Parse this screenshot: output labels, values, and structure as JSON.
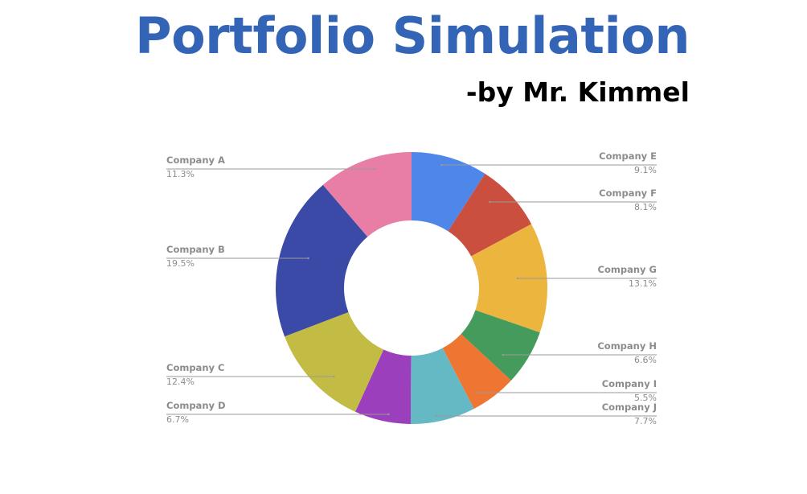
{
  "header": {
    "title": "Portfolio Simulation",
    "subtitle": "-by Mr. Kimmel"
  },
  "chart_data": {
    "type": "pie",
    "style": "donut",
    "categories": [
      "Company E",
      "Company F",
      "Company G",
      "Company H",
      "Company I",
      "Company J",
      "Company D",
      "Company C",
      "Company B",
      "Company A"
    ],
    "values": [
      9.1,
      8.1,
      13.1,
      6.6,
      5.5,
      7.7,
      6.7,
      12.4,
      19.5,
      11.3
    ],
    "labels": [
      "9.1%",
      "8.1%",
      "13.1%",
      "6.6%",
      "5.5%",
      "7.7%",
      "6.7%",
      "12.4%",
      "19.5%",
      "11.3%"
    ],
    "colors": [
      "#4f86ea",
      "#cb4f3f",
      "#ecb53e",
      "#449b5c",
      "#ef7533",
      "#64b9c5",
      "#9b3fbd",
      "#c3bc44",
      "#3a4aa6",
      "#e87ea5"
    ],
    "start_angle": "12 o'clock",
    "direction": "clockwise",
    "legend": "none",
    "label_placement": "outside-callouts"
  }
}
